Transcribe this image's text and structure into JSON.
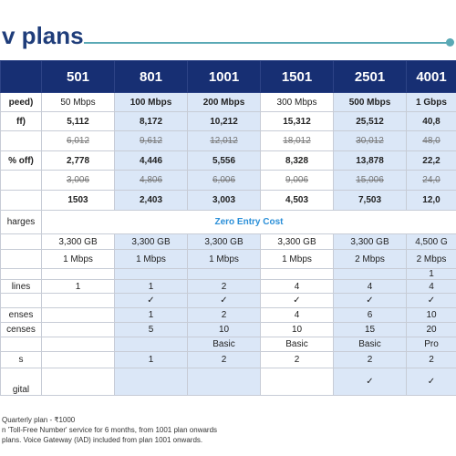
{
  "title": "v plans",
  "plans": [
    "501",
    "801",
    "1001",
    "1501",
    "2501",
    "4001"
  ],
  "rows": {
    "speed": {
      "label": "peed)",
      "values": [
        "50 Mbps",
        "100 Mbps",
        "200 Mbps",
        "300 Mbps",
        "500 Mbps",
        "1 Gbps"
      ]
    },
    "price1": {
      "label": "ff)",
      "values": [
        "5,112",
        "8,172",
        "10,212",
        "15,312",
        "25,512",
        "40,8"
      ]
    },
    "orig1": {
      "label": "",
      "values": [
        "6,012",
        "9,612",
        "12,012",
        "18,012",
        "30,012",
        "48,0"
      ]
    },
    "price2": {
      "label": "% off)",
      "values": [
        "2,778",
        "4,446",
        "5,556",
        "8,328",
        "13,878",
        "22,2"
      ]
    },
    "orig2": {
      "label": "",
      "values": [
        "3,006",
        "4,806",
        "6,006",
        "9,006",
        "15,006",
        "24,0"
      ]
    },
    "price3": {
      "label": "",
      "values": [
        "1503",
        "2,403",
        "3,003",
        "4,503",
        "7,503",
        "12,0"
      ]
    },
    "charges": {
      "label": "harges",
      "zero": "Zero Entry Cost"
    },
    "data": {
      "label": "",
      "values": [
        "3,300 GB",
        "3,300 GB",
        "3,300 GB",
        "3,300 GB",
        "3,300 GB",
        "4,500 G"
      ]
    },
    "upload": {
      "label": "",
      "values": [
        "1 Mbps",
        "1 Mbps",
        "1 Mbps",
        "1 Mbps",
        "2 Mbps",
        "2 Mbps"
      ]
    },
    "extra": {
      "label": "",
      "values": [
        "",
        "",
        "",
        "",
        "",
        "1"
      ]
    },
    "lines": {
      "label": "lines",
      "values": [
        "1",
        "1",
        "2",
        "4",
        "4",
        "4"
      ]
    },
    "checks": {
      "label": "",
      "values": [
        "",
        "✓",
        "✓",
        "✓",
        "✓",
        "✓"
      ]
    },
    "licenses1": {
      "label": "enses",
      "values": [
        "",
        "1",
        "2",
        "4",
        "6",
        "10"
      ]
    },
    "licenses2": {
      "label": "censes",
      "values": [
        "",
        "5",
        "10",
        "10",
        "15",
        "20"
      ]
    },
    "tier": {
      "label": "",
      "values": [
        "",
        "",
        "Basic",
        "Basic",
        "Basic",
        "Pro"
      ]
    },
    "s": {
      "label": "s",
      "values": [
        "",
        "1",
        "2",
        "2",
        "2",
        "2"
      ]
    },
    "digital": {
      "label": "gital",
      "values": [
        "",
        "",
        "",
        "",
        "✓",
        "✓"
      ]
    }
  },
  "notes": [
    "Quarterly plan - ₹1000",
    "n 'Toll-Free Number' service for 6 months, from 1001 plan onwards",
    "plans. Voice Gateway (IAD) included from plan 1001 onwards."
  ]
}
